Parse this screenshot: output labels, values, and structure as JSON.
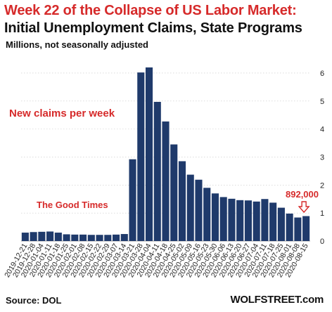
{
  "title": "Week 22 of the Collapse of US Labor Market:",
  "subtitle": "Initial Unemployment Claims, State Programs",
  "units_note": "Millions, not seasonally adjusted",
  "source": "Source: DOL",
  "brand": "WOLFSTREET.com",
  "colors": {
    "bar": "#1f3a6b",
    "annotation": "#d62a2a",
    "title_accent": "#d62a2a",
    "grid": "#c8c8c8"
  },
  "chart_data": {
    "type": "bar",
    "categories": [
      "2019-12-21",
      "2019-12-28",
      "2020-01-04",
      "2020-01-11",
      "2020-01-18",
      "2020-01-25",
      "2020-02-01",
      "2020-02-08",
      "2020-02-15",
      "2020-02-22",
      "2020-02-29",
      "2020-03-07",
      "2020-03-14",
      "2020-03-21",
      "2020-03-28",
      "2020-04-04",
      "2020-04-11",
      "2020-04-18",
      "2020-04-25",
      "2020-05-02",
      "2020-05-09",
      "2020-05-16",
      "2020-05-23",
      "2020-05-30",
      "2020-06-06",
      "2020-06-13",
      "2020-06-20",
      "2020-06-27",
      "2020-07-04",
      "2020-07-11",
      "2020-07-18",
      "2020-07-25",
      "2020-08-01",
      "2020-08-08",
      "2020-08-15"
    ],
    "x_tick_labels": [
      "2019-12-21",
      "2019-12-28",
      "2020-01-04",
      "2020-01-11",
      "2020-01-18",
      "2020-01-25",
      "2020-02-01",
      "2020-02-08",
      "2020-02-15",
      "2020-02-22",
      "2020-02-29",
      "2020-03-07",
      "2020-03-14",
      "2020-03-21",
      "2020-03-28",
      "2020-04-04",
      "2020-04-11",
      "2020-04-18",
      "2020-04-25",
      "2020-05-02",
      "2020-05-09",
      "2020-05-16",
      "2020-05-23",
      "2020-05-30",
      "2020-06-06",
      "2020-06-13",
      "2020-06-20",
      "2020-06-27",
      "2020-07-04",
      "2020-07-11",
      "2020-07-18",
      "2020-07-25",
      "2020-08-01",
      "2020-08-08",
      "2020-08-15"
    ],
    "values": [
      0.3,
      0.32,
      0.33,
      0.34,
      0.3,
      0.24,
      0.23,
      0.23,
      0.22,
      0.22,
      0.22,
      0.23,
      0.25,
      2.92,
      6.02,
      6.2,
      4.97,
      4.27,
      3.45,
      2.85,
      2.37,
      2.19,
      1.9,
      1.7,
      1.57,
      1.51,
      1.46,
      1.45,
      1.41,
      1.5,
      1.37,
      1.19,
      0.98,
      0.84,
      0.89
    ],
    "ylim": [
      0,
      6.5
    ],
    "y_ticks": [
      0,
      1,
      2,
      3,
      4,
      5,
      6
    ],
    "y_tick_labels": [
      "0",
      "1",
      "2",
      "3",
      "4",
      "5",
      "6"
    ],
    "grid": true,
    "annotations": {
      "label_left": "New claims per week",
      "label_good_times": "The Good Times",
      "label_last_value": "892,000"
    }
  }
}
